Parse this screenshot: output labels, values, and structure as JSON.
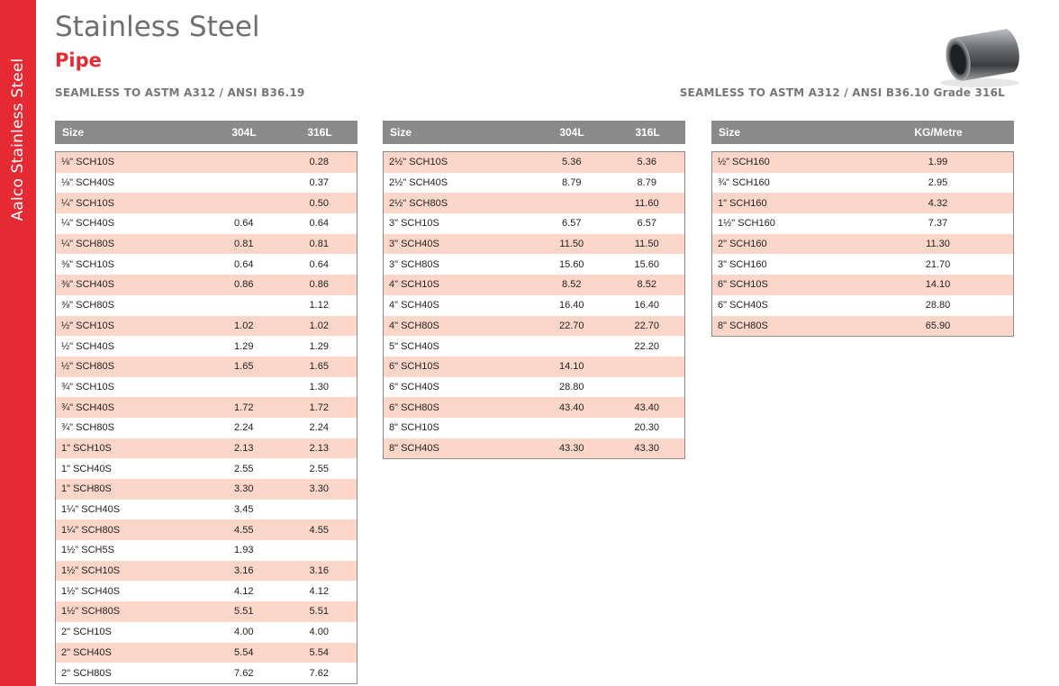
{
  "side_label": "Aalco Stainless Steel",
  "title": "Stainless Steel",
  "subtitle": "Pipe",
  "spec_left": "SEAMLESS TO ASTM A312 / ANSI B36.19",
  "spec_right": "SEAMLESS TO ASTM A312 / ANSI B36.10 Grade 316L",
  "image_icon": "pipe-image",
  "table1": {
    "headers": [
      "Size",
      "304L",
      "316L"
    ],
    "rows": [
      [
        "⅛\" SCH10S",
        "",
        "0.28"
      ],
      [
        "⅛\" SCH40S",
        "",
        "0.37"
      ],
      [
        "¼\" SCH10S",
        "",
        "0.50"
      ],
      [
        "¼\" SCH40S",
        "0.64",
        "0.64"
      ],
      [
        "¼\" SCH80S",
        "0.81",
        "0.81"
      ],
      [
        "⅜\" SCH10S",
        "0.64",
        "0.64"
      ],
      [
        "⅜\" SCH40S",
        "0.86",
        "0.86"
      ],
      [
        "⅜\" SCH80S",
        "",
        "1.12"
      ],
      [
        "½\" SCH10S",
        "1.02",
        "1.02"
      ],
      [
        "½\" SCH40S",
        "1.29",
        "1.29"
      ],
      [
        "½\" SCH80S",
        "1.65",
        "1.65"
      ],
      [
        "¾\" SCH10S",
        "",
        "1.30"
      ],
      [
        "¾\" SCH40S",
        "1.72",
        "1.72"
      ],
      [
        "¾\" SCH80S",
        "2.24",
        "2.24"
      ],
      [
        "1\" SCH10S",
        "2.13",
        "2.13"
      ],
      [
        "1\" SCH40S",
        "2.55",
        "2.55"
      ],
      [
        "1\" SCH80S",
        "3.30",
        "3.30"
      ],
      [
        "1¼\" SCH40S",
        "3.45",
        ""
      ],
      [
        "1¼\" SCH80S",
        "4.55",
        "4.55"
      ],
      [
        "1½\" SCH5S",
        "1.93",
        ""
      ],
      [
        "1½\" SCH10S",
        "3.16",
        "3.16"
      ],
      [
        "1½\" SCH40S",
        "4.12",
        "4.12"
      ],
      [
        "1½\" SCH80S",
        "5.51",
        "5.51"
      ],
      [
        "2\" SCH10S",
        "4.00",
        "4.00"
      ],
      [
        "2\" SCH40S",
        "5.54",
        "5.54"
      ],
      [
        "2\" SCH80S",
        "7.62",
        "7.62"
      ]
    ]
  },
  "table2": {
    "headers": [
      "Size",
      "304L",
      "316L"
    ],
    "rows": [
      [
        "2½\" SCH10S",
        "5.36",
        "5.36"
      ],
      [
        "2½\" SCH40S",
        "8.79",
        "8.79"
      ],
      [
        "2½\" SCH80S",
        "",
        "11.60"
      ],
      [
        "3\" SCH10S",
        "6.57",
        "6.57"
      ],
      [
        "3\" SCH40S",
        "11.50",
        "11.50"
      ],
      [
        "3\" SCH80S",
        "15.60",
        "15.60"
      ],
      [
        "4\" SCH10S",
        "8.52",
        "8.52"
      ],
      [
        "4\" SCH40S",
        "16.40",
        "16.40"
      ],
      [
        "4\" SCH80S",
        "22.70",
        "22.70"
      ],
      [
        "5\" SCH40S",
        "",
        "22.20"
      ],
      [
        "6\" SCH10S",
        "14.10",
        ""
      ],
      [
        "6\" SCH40S",
        "28.80",
        ""
      ],
      [
        "6\" SCH80S",
        "43.40",
        "43.40"
      ],
      [
        "8\" SCH10S",
        "",
        "20.30"
      ],
      [
        "8\" SCH40S",
        "43.30",
        "43.30"
      ]
    ]
  },
  "table3": {
    "headers": [
      "Size",
      "KG/Metre"
    ],
    "rows": [
      [
        "½\" SCH160",
        "1.99"
      ],
      [
        "¾\" SCH160",
        "2.95"
      ],
      [
        "1\" SCH160",
        "4.32"
      ],
      [
        "1½\" SCH160",
        "7.37"
      ],
      [
        "2\" SCH160",
        "11.30"
      ],
      [
        "3\" SCH160",
        "21.70"
      ],
      [
        "6\" SCH10S",
        "14.10"
      ],
      [
        "6\" SCH40S",
        "28.80"
      ],
      [
        "8\" SCH80S",
        "65.90"
      ]
    ]
  }
}
